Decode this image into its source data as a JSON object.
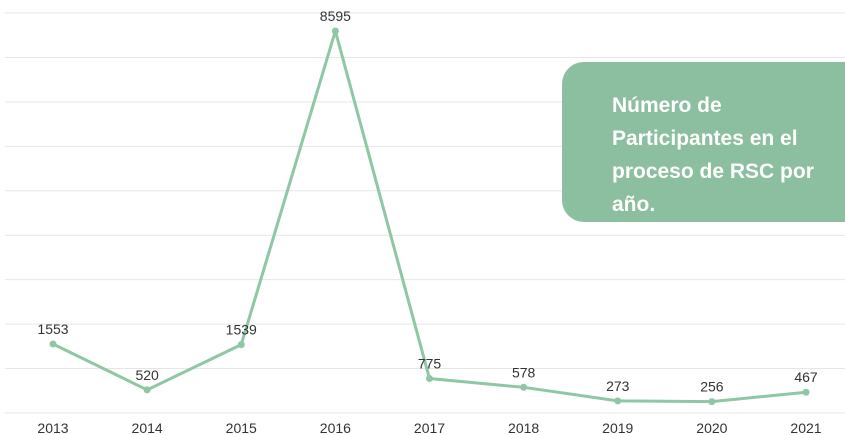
{
  "chart_data": {
    "type": "line",
    "title": "Número de Participantes en el proceso de RSC por año.",
    "categories": [
      "2013",
      "2014",
      "2015",
      "2016",
      "2017",
      "2018",
      "2019",
      "2020",
      "2021"
    ],
    "values": [
      1553,
      520,
      1539,
      8595,
      775,
      578,
      273,
      256,
      467
    ],
    "color": "#8fc7a5",
    "ylim": [
      0,
      9000
    ],
    "yticks": [
      0,
      1000,
      2000,
      3000,
      4000,
      5000,
      6000,
      7000,
      8000,
      9000
    ],
    "grid": true
  }
}
